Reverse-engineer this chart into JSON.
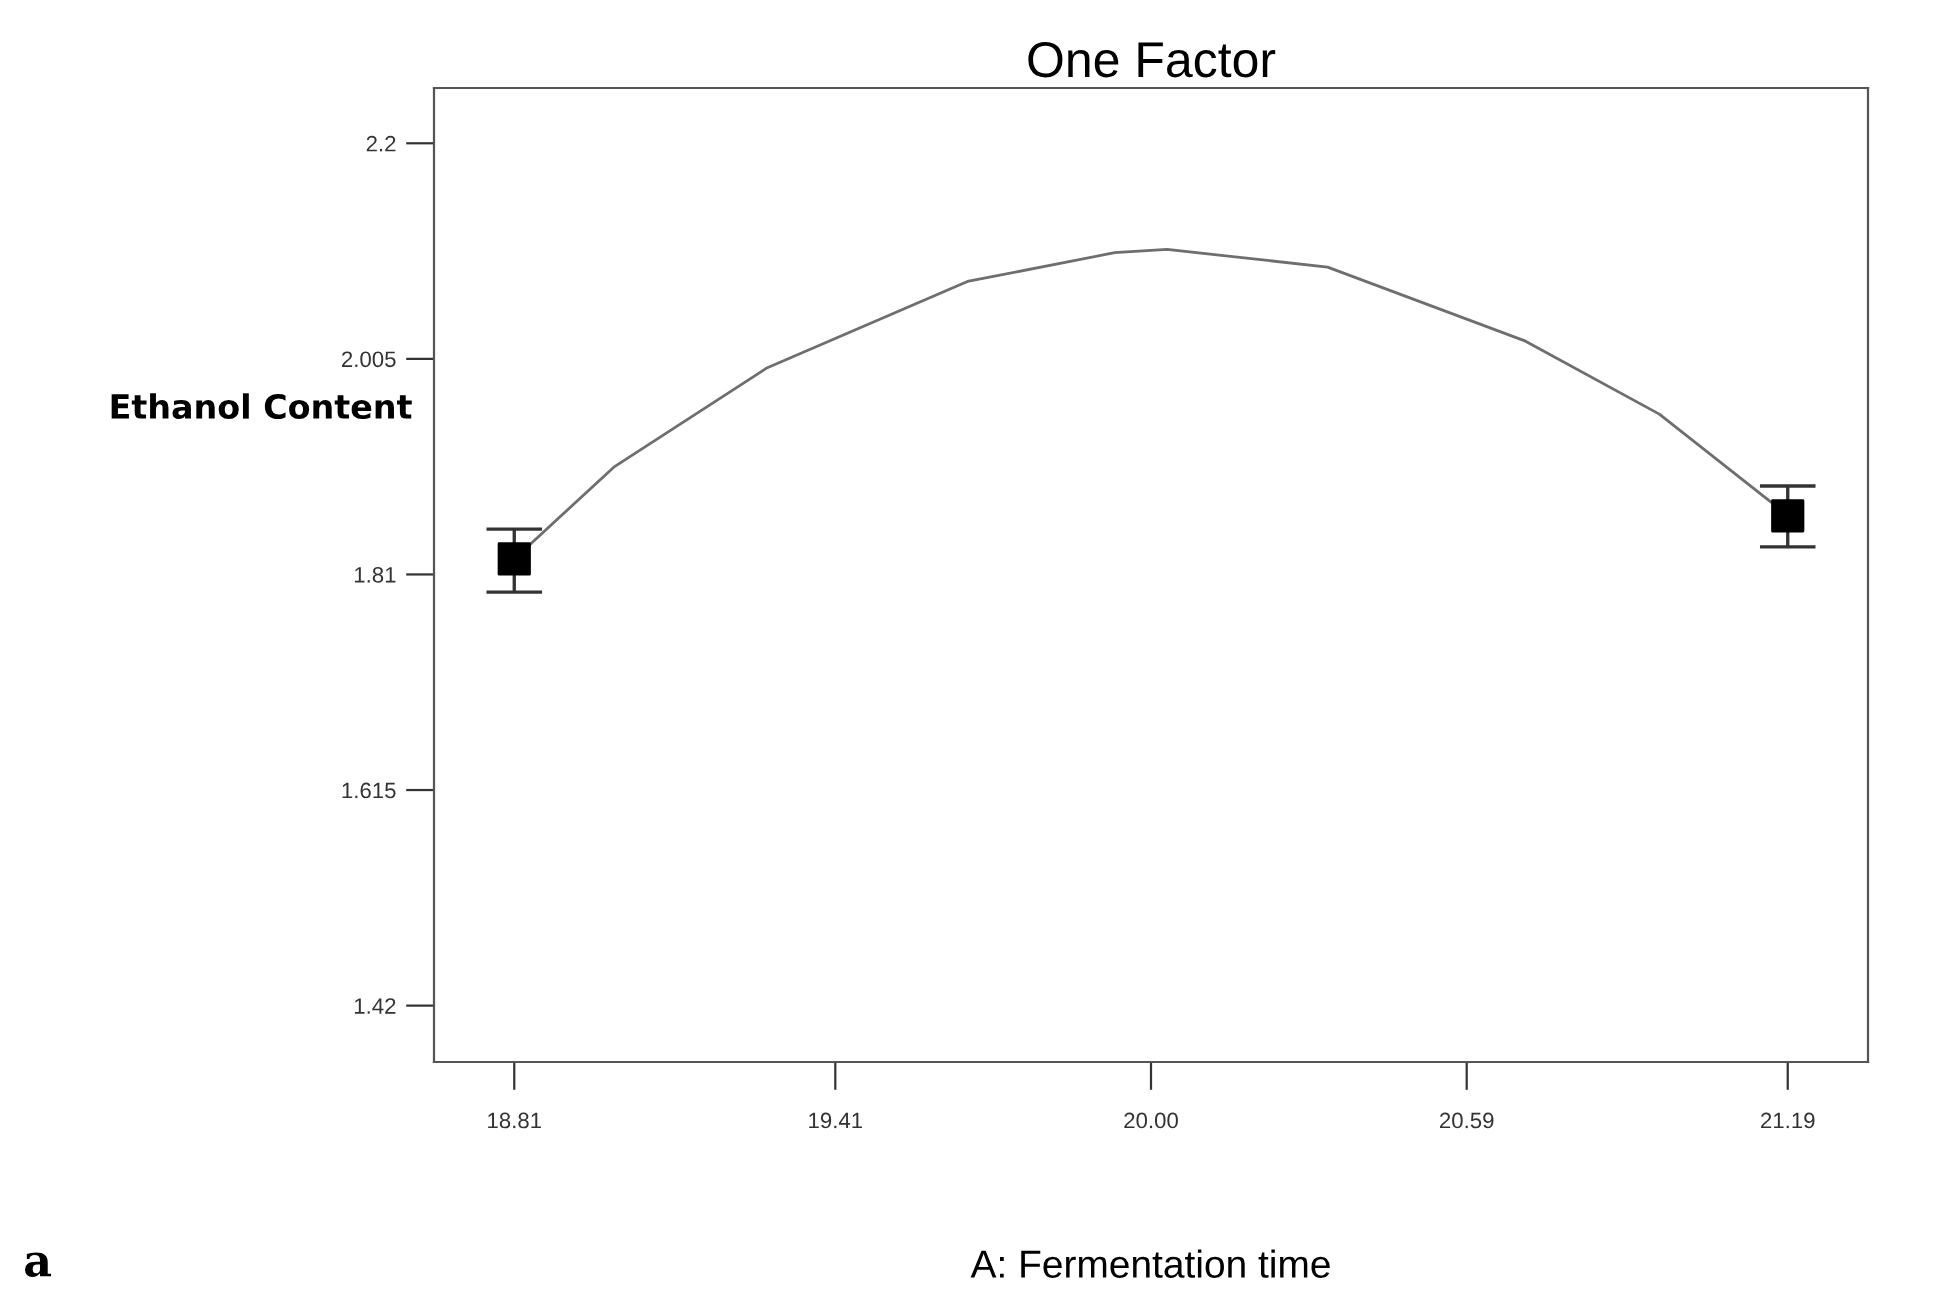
{
  "chart_data": {
    "type": "line",
    "title": "One Factor",
    "xlabel": "A: Fermentation time",
    "ylabel": "Ethanol Content",
    "annotations": [
      "a"
    ],
    "xlim": [
      18.66,
      21.34
    ],
    "ylim": [
      1.369,
      2.25
    ],
    "xticks": [
      {
        "value": 18.81,
        "label": "18.81"
      },
      {
        "value": 19.41,
        "label": "19.41"
      },
      {
        "value": 20.0,
        "label": "20.00"
      },
      {
        "value": 20.59,
        "label": "20.59"
      },
      {
        "value": 21.19,
        "label": "21.19"
      }
    ],
    "yticks": [
      1.42,
      1.615,
      1.81,
      2.005,
      2.2
    ],
    "grid": false,
    "legend": false,
    "series": [
      {
        "color": "#6e6e6e",
        "marker": "none",
        "line_style": "solid",
        "x": [
          18.81,
          18.996,
          19.283,
          19.657,
          19.932,
          20.03,
          20.33,
          20.7,
          20.95,
          21.16,
          21.19
        ],
        "values": [
          1.824,
          1.907,
          1.997,
          2.075,
          2.101,
          2.104,
          2.088,
          2.021,
          1.955,
          1.875,
          1.863
        ]
      },
      {
        "type": "scatter",
        "color": "#000000",
        "marker": "square",
        "x": [
          18.81,
          21.19
        ],
        "values": [
          1.824,
          1.863
        ],
        "errors": [
          [
            1.794,
            1.851
          ],
          [
            1.835,
            1.89
          ]
        ]
      }
    ]
  }
}
